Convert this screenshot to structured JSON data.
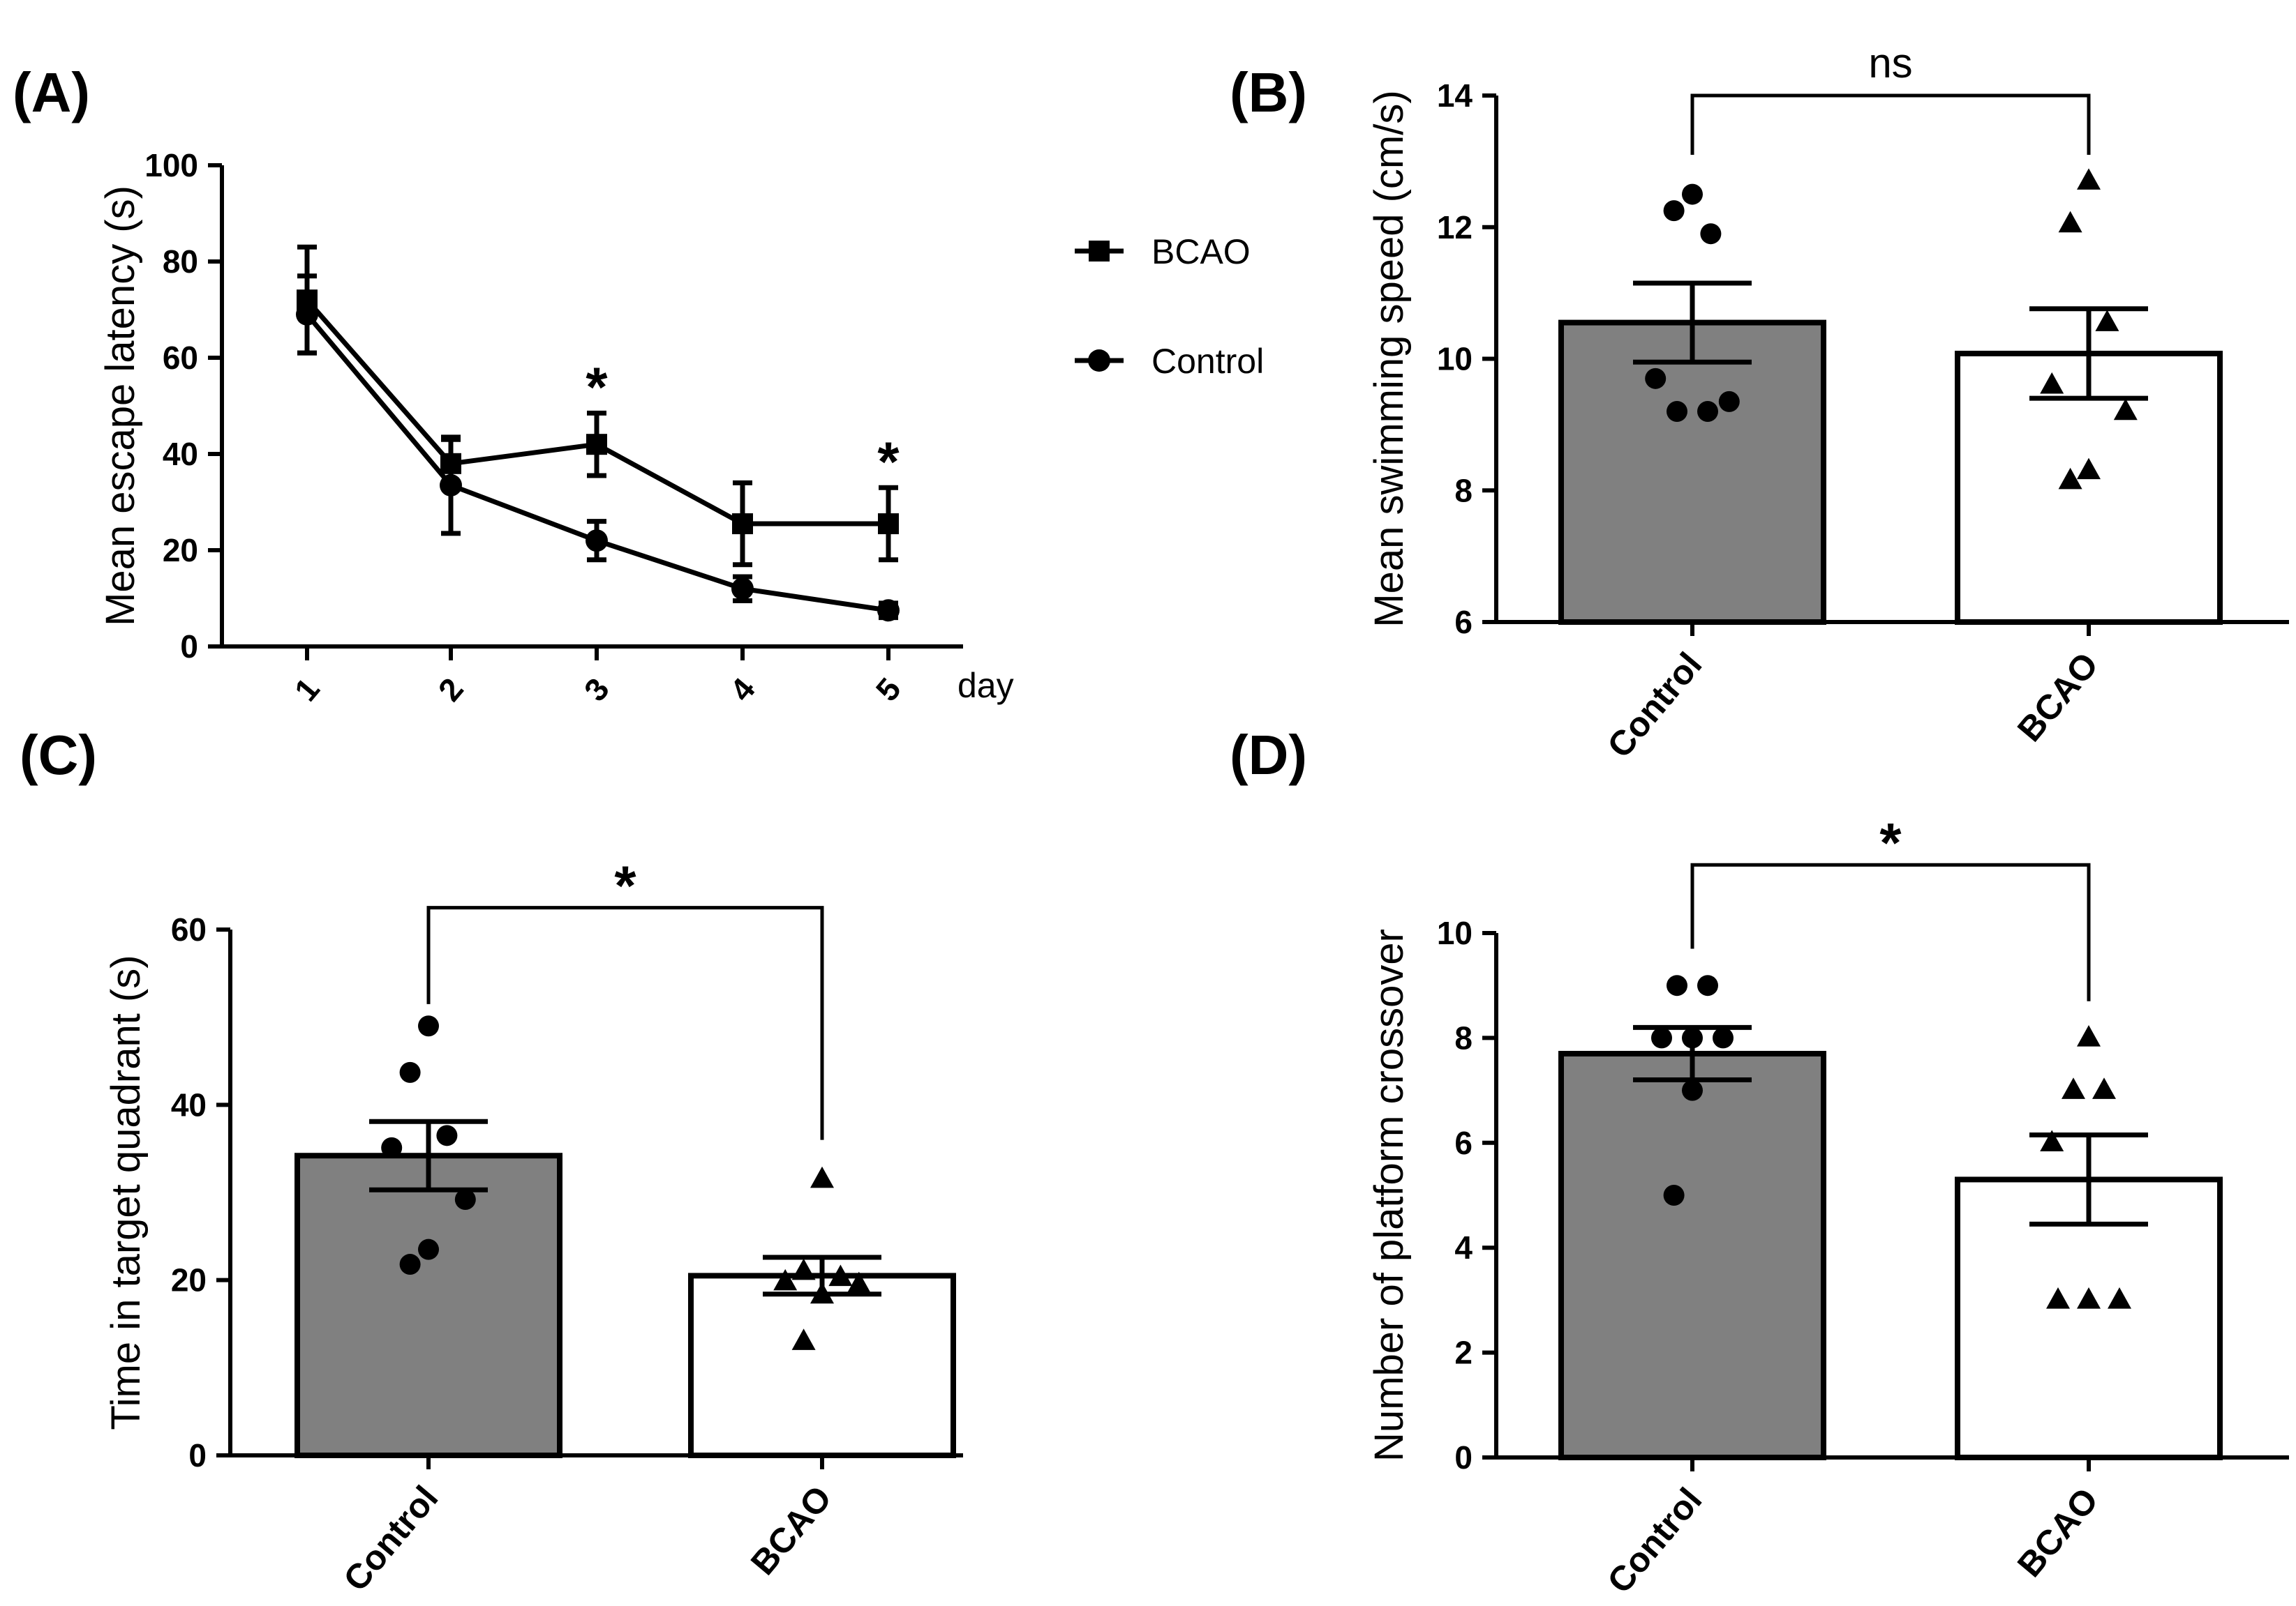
{
  "chart_data": [
    {
      "panel": "(A)",
      "type": "line",
      "xlabel": "day",
      "ylabel": "Mean escape latency (s)",
      "ylim": [
        0,
        100
      ],
      "yticks": [
        0,
        20,
        40,
        60,
        80,
        100
      ],
      "ytick_labels": [
        "0",
        "20",
        "40",
        "60",
        "80",
        "100"
      ],
      "categories": [
        "1",
        "2",
        "3",
        "4",
        "5"
      ],
      "series": [
        {
          "name": "BCAO",
          "marker": "square",
          "values": [
            72,
            38,
            42,
            25.5,
            25.5
          ],
          "errors": [
            11,
            5,
            6.5,
            8.5,
            7.5
          ]
        },
        {
          "name": "Control",
          "marker": "circle",
          "values": [
            69,
            33.5,
            22,
            12,
            7.5
          ],
          "errors": [
            8,
            10,
            4,
            2.5,
            1.5
          ]
        }
      ],
      "significance": [
        "",
        "",
        "*",
        "",
        "*"
      ]
    },
    {
      "panel": "(B)",
      "type": "bar",
      "ylabel": "Mean swimming speed (cm/s)",
      "ylim": [
        6,
        14
      ],
      "yticks": [
        6,
        8,
        10,
        12,
        14
      ],
      "ytick_labels": [
        "6",
        "8",
        "10",
        "12",
        "14"
      ],
      "categories": [
        "Control",
        "BCAO"
      ],
      "values": [
        10.55,
        10.08
      ],
      "errors": [
        0.6,
        0.68
      ],
      "points": [
        [
          12.5,
          12.25,
          11.9,
          9.7,
          9.35,
          9.2,
          9.2
        ],
        [
          12.7,
          12.05,
          10.55,
          9.6,
          9.2,
          8.3,
          8.15
        ]
      ],
      "significance": "ns"
    },
    {
      "panel": "(C)",
      "type": "bar",
      "ylabel": "Time in target quadrant (s)",
      "ylim": [
        0,
        60
      ],
      "yticks": [
        0,
        20,
        40,
        60
      ],
      "ytick_labels": [
        "0",
        "20",
        "40",
        "60"
      ],
      "categories": [
        "Control",
        "BCAO"
      ],
      "values": [
        34.2,
        20.5
      ],
      "errors": [
        3.9,
        2.1
      ],
      "points": [
        [
          49,
          43.7,
          36.5,
          35.1,
          29.2,
          23.5,
          21.8
        ],
        [
          31.5,
          21,
          20.3,
          19.8,
          19.5,
          18.3,
          13
        ]
      ],
      "significance": "*"
    },
    {
      "panel": "(D)",
      "type": "bar",
      "ylabel": "Number of platform crossover",
      "ylim": [
        0,
        10
      ],
      "yticks": [
        0,
        2,
        4,
        6,
        8,
        10
      ],
      "ytick_labels": [
        "0",
        "2",
        "4",
        "6",
        "8",
        "10"
      ],
      "categories": [
        "Control",
        "BCAO"
      ],
      "values": [
        7.7,
        5.3
      ],
      "errors": [
        0.5,
        0.85
      ],
      "points": [
        [
          9,
          9,
          8,
          8,
          8,
          7,
          5
        ],
        [
          8,
          7,
          7,
          6,
          3,
          3,
          3
        ]
      ],
      "significance": "*"
    }
  ],
  "colors": {
    "control_bar": "#808080",
    "bcao_bar": "#ffffff",
    "ink": "#000000"
  }
}
